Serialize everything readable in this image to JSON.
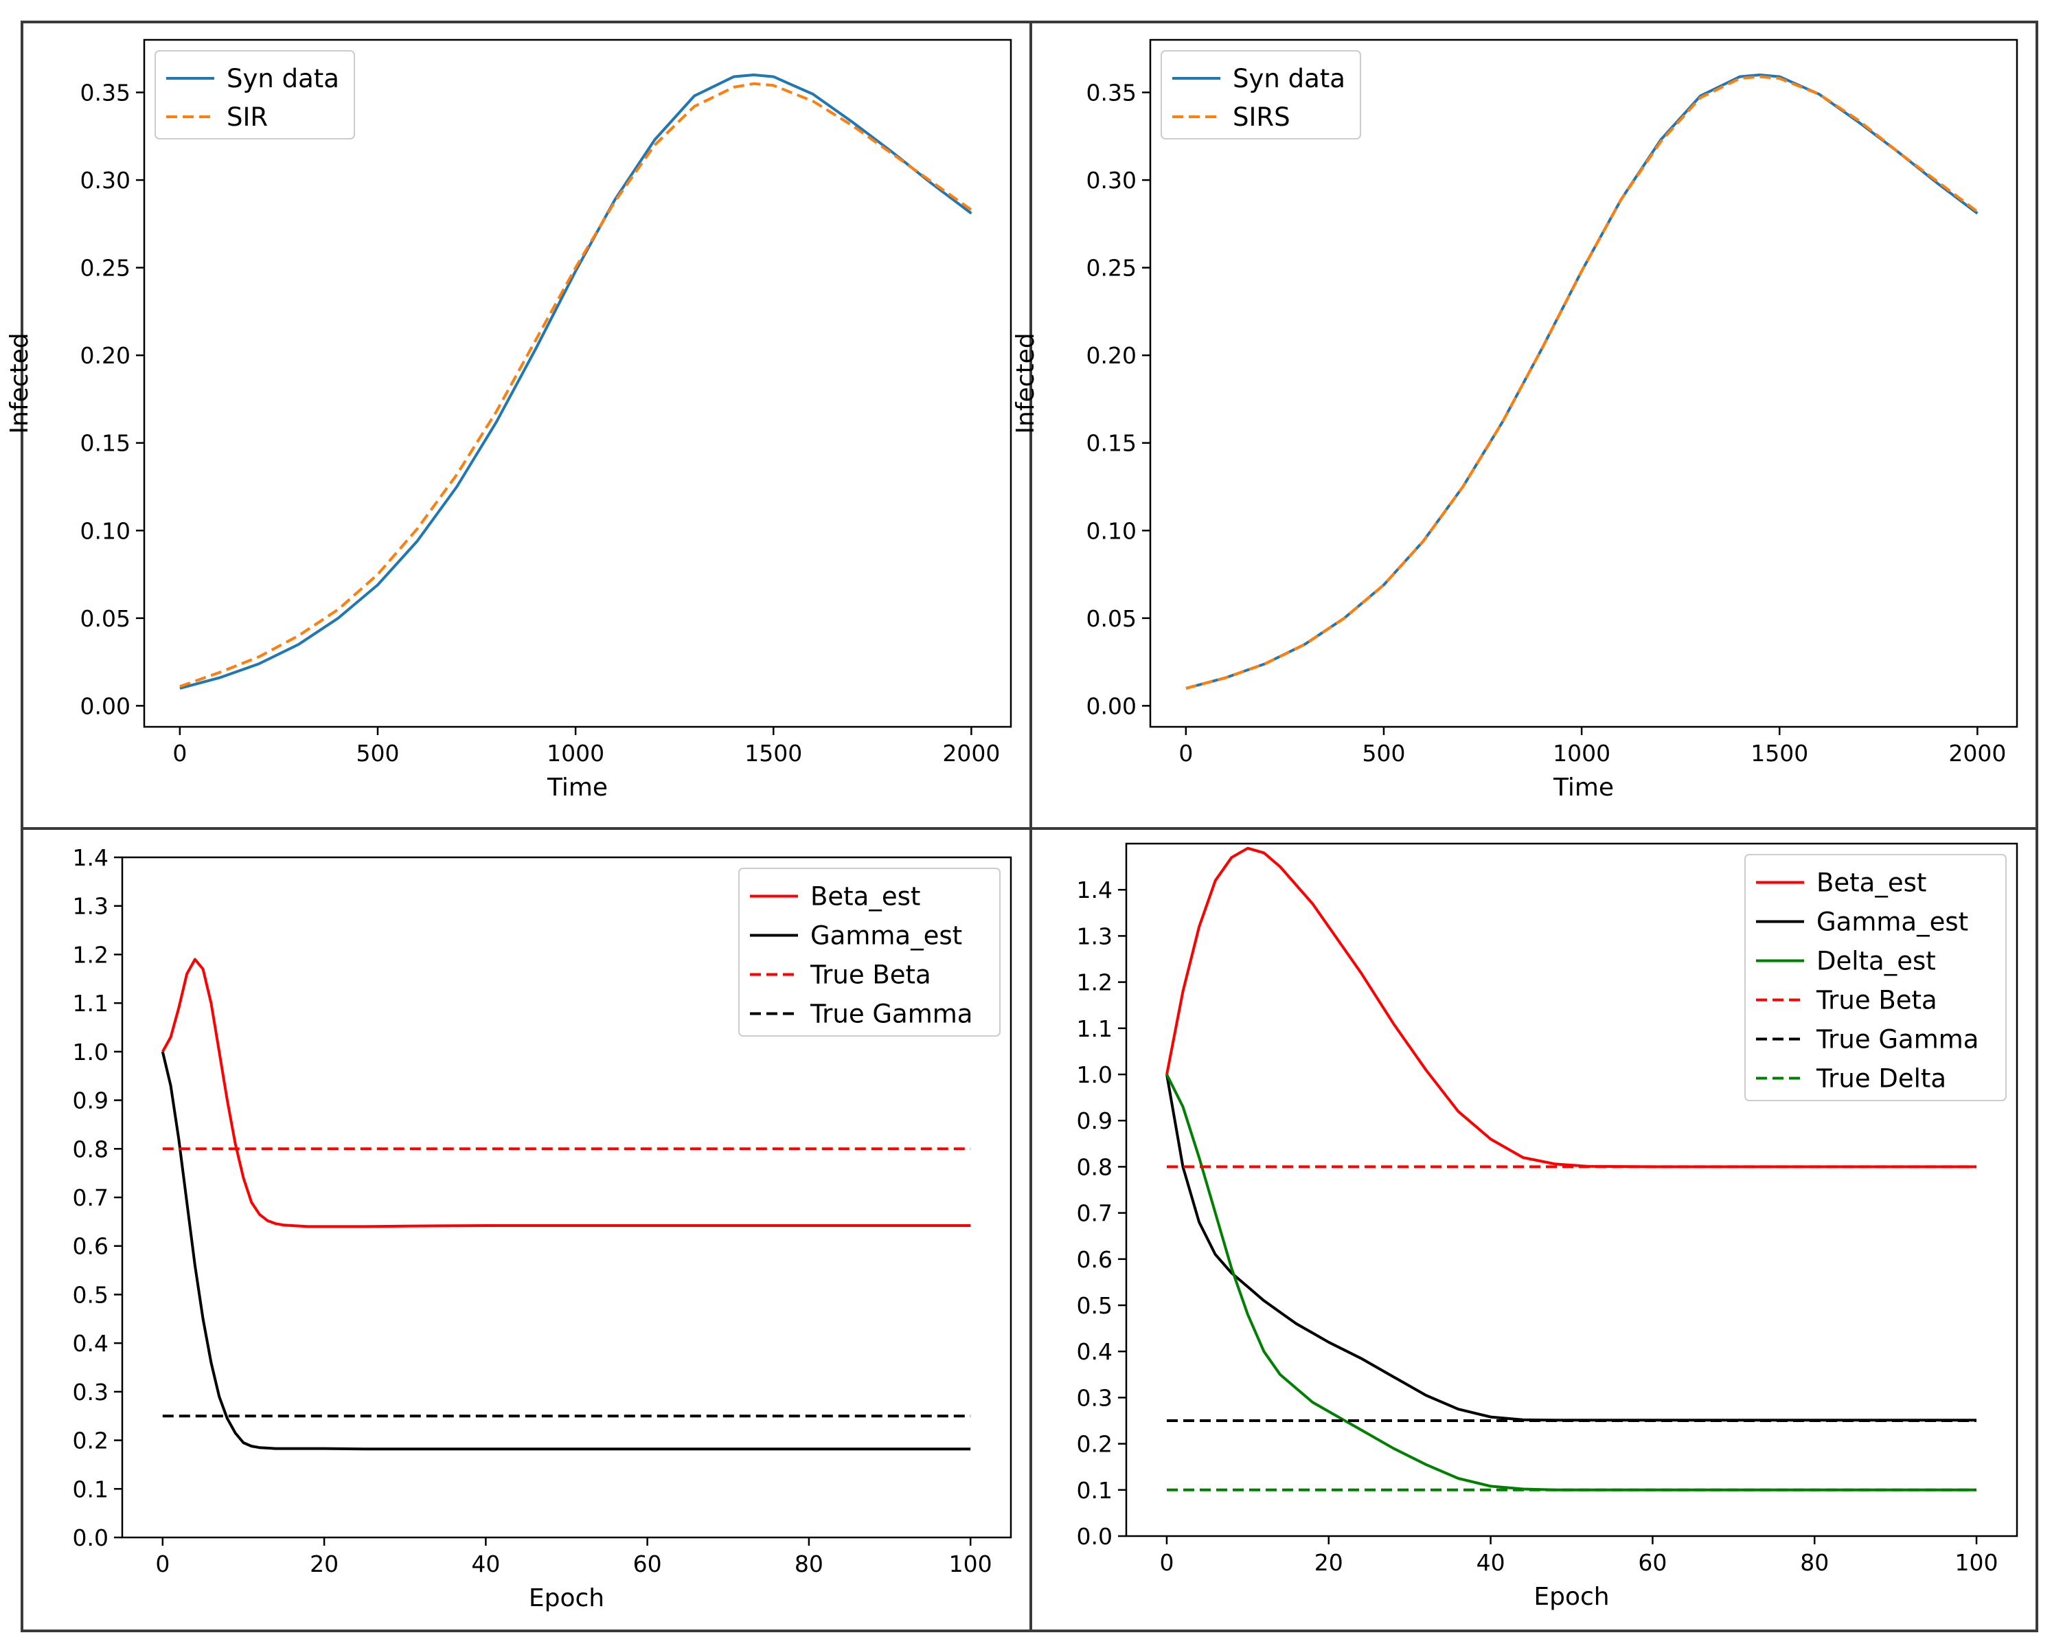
{
  "figure": {
    "panels_count": 4
  },
  "chart_data": [
    {
      "type": "line",
      "xlabel": "Time",
      "ylabel": "Infected",
      "xlim": [
        -90,
        2100
      ],
      "ylim": [
        -0.012,
        0.38
      ],
      "xticks": [
        0,
        500,
        1000,
        1500,
        2000
      ],
      "xtick_labels": [
        "0",
        "500",
        "1000",
        "1500",
        "2000"
      ],
      "yticks": [
        0.0,
        0.05,
        0.1,
        0.15,
        0.2,
        0.25,
        0.3,
        0.35
      ],
      "ytick_labels": [
        "0.00",
        "0.05",
        "0.10",
        "0.15",
        "0.20",
        "0.25",
        "0.30",
        "0.35"
      ],
      "grid": false,
      "legend_position": "upper-left",
      "x": [
        0,
        100,
        200,
        300,
        400,
        500,
        600,
        700,
        800,
        900,
        1000,
        1100,
        1200,
        1300,
        1400,
        1450,
        1500,
        1600,
        1700,
        1800,
        1900,
        2000
      ],
      "series": [
        {
          "name": "Syn data",
          "color": "#1f77b4",
          "style": "solid",
          "values": [
            0.01,
            0.016,
            0.024,
            0.035,
            0.05,
            0.069,
            0.094,
            0.125,
            0.162,
            0.204,
            0.248,
            0.289,
            0.323,
            0.348,
            0.359,
            0.36,
            0.359,
            0.349,
            0.333,
            0.316,
            0.298,
            0.281
          ]
        },
        {
          "name": "SIR",
          "color": "#ff7f0e",
          "style": "dashed",
          "values": [
            0.011,
            0.019,
            0.028,
            0.04,
            0.055,
            0.075,
            0.101,
            0.132,
            0.168,
            0.209,
            0.25,
            0.288,
            0.32,
            0.342,
            0.353,
            0.355,
            0.354,
            0.345,
            0.331,
            0.315,
            0.299,
            0.283
          ]
        }
      ]
    },
    {
      "type": "line",
      "xlabel": "Time",
      "ylabel": "Infected",
      "xlim": [
        -90,
        2100
      ],
      "ylim": [
        -0.012,
        0.38
      ],
      "xticks": [
        0,
        500,
        1000,
        1500,
        2000
      ],
      "xtick_labels": [
        "0",
        "500",
        "1000",
        "1500",
        "2000"
      ],
      "yticks": [
        0.0,
        0.05,
        0.1,
        0.15,
        0.2,
        0.25,
        0.3,
        0.35
      ],
      "ytick_labels": [
        "0.00",
        "0.05",
        "0.10",
        "0.15",
        "0.20",
        "0.25",
        "0.30",
        "0.35"
      ],
      "grid": false,
      "legend_position": "upper-left",
      "x": [
        0,
        100,
        200,
        300,
        400,
        500,
        600,
        700,
        800,
        900,
        1000,
        1100,
        1200,
        1300,
        1400,
        1450,
        1500,
        1600,
        1700,
        1800,
        1900,
        2000
      ],
      "series": [
        {
          "name": "Syn data",
          "color": "#1f77b4",
          "style": "solid",
          "values": [
            0.01,
            0.016,
            0.024,
            0.035,
            0.05,
            0.069,
            0.094,
            0.125,
            0.162,
            0.204,
            0.248,
            0.289,
            0.323,
            0.348,
            0.359,
            0.36,
            0.359,
            0.349,
            0.333,
            0.316,
            0.298,
            0.281
          ]
        },
        {
          "name": "SIRS",
          "color": "#ff7f0e",
          "style": "dashed",
          "values": [
            0.01,
            0.016,
            0.024,
            0.035,
            0.05,
            0.069,
            0.094,
            0.125,
            0.162,
            0.204,
            0.248,
            0.289,
            0.322,
            0.347,
            0.358,
            0.359,
            0.358,
            0.349,
            0.334,
            0.316,
            0.299,
            0.282
          ]
        }
      ]
    },
    {
      "type": "line",
      "xlabel": "Epoch",
      "ylabel": "",
      "xlim": [
        -5,
        105
      ],
      "ylim": [
        0.0,
        1.4
      ],
      "xticks": [
        0,
        20,
        40,
        60,
        80,
        100
      ],
      "xtick_labels": [
        "0",
        "20",
        "40",
        "60",
        "80",
        "100"
      ],
      "yticks": [
        0.0,
        0.1,
        0.2,
        0.3,
        0.4,
        0.5,
        0.6,
        0.7,
        0.8,
        0.9,
        1.0,
        1.1,
        1.2,
        1.3,
        1.4
      ],
      "ytick_labels": [
        "0.0",
        "0.1",
        "0.2",
        "0.3",
        "0.4",
        "0.5",
        "0.6",
        "0.7",
        "0.8",
        "0.9",
        "1.0",
        "1.1",
        "1.2",
        "1.3",
        "1.4"
      ],
      "grid": false,
      "legend_position": "upper-right",
      "series": [
        {
          "name": "Beta_est",
          "color": "#ff0000",
          "style": "solid",
          "x": [
            0,
            1,
            2,
            3,
            4,
            5,
            6,
            7,
            8,
            9,
            10,
            11,
            12,
            13,
            14,
            15,
            16,
            18,
            20,
            25,
            30,
            40,
            50,
            60,
            70,
            80,
            90,
            100
          ],
          "values": [
            1.0,
            1.03,
            1.09,
            1.16,
            1.19,
            1.17,
            1.1,
            1.0,
            0.9,
            0.81,
            0.74,
            0.69,
            0.665,
            0.652,
            0.646,
            0.643,
            0.642,
            0.64,
            0.64,
            0.64,
            0.641,
            0.642,
            0.642,
            0.642,
            0.642,
            0.642,
            0.642,
            0.642
          ]
        },
        {
          "name": "Gamma_est",
          "color": "#000000",
          "style": "solid",
          "x": [
            0,
            1,
            2,
            3,
            4,
            5,
            6,
            7,
            8,
            9,
            10,
            11,
            12,
            13,
            14,
            15,
            16,
            18,
            20,
            25,
            30,
            40,
            50,
            60,
            70,
            80,
            90,
            100
          ],
          "values": [
            1.0,
            0.93,
            0.82,
            0.69,
            0.56,
            0.45,
            0.36,
            0.29,
            0.245,
            0.215,
            0.195,
            0.188,
            0.185,
            0.184,
            0.183,
            0.183,
            0.183,
            0.183,
            0.183,
            0.182,
            0.182,
            0.182,
            0.182,
            0.182,
            0.182,
            0.182,
            0.182,
            0.182
          ],
          "values_note_x_scale": 1
        },
        {
          "name": "True Beta",
          "color": "#ff0000",
          "style": "dashed",
          "x": [
            0,
            100
          ],
          "values": [
            0.8,
            0.8
          ]
        },
        {
          "name": "True Gamma",
          "color": "#000000",
          "style": "dashed",
          "x": [
            0,
            100
          ],
          "values": [
            0.25,
            0.25
          ]
        }
      ]
    },
    {
      "type": "line",
      "xlabel": "Epoch",
      "ylabel": "",
      "xlim": [
        -5,
        105
      ],
      "ylim": [
        0.0,
        1.5
      ],
      "xticks": [
        0,
        20,
        40,
        60,
        80,
        100
      ],
      "xtick_labels": [
        "0",
        "20",
        "40",
        "60",
        "80",
        "100"
      ],
      "yticks": [
        0.0,
        0.1,
        0.2,
        0.3,
        0.4,
        0.5,
        0.6,
        0.7,
        0.8,
        0.9,
        1.0,
        1.1,
        1.2,
        1.3,
        1.4
      ],
      "ytick_labels": [
        "0.0",
        "0.1",
        "0.2",
        "0.3",
        "0.4",
        "0.5",
        "0.6",
        "0.7",
        "0.8",
        "0.9",
        "1.0",
        "1.1",
        "1.2",
        "1.3",
        "1.4"
      ],
      "grid": false,
      "legend_position": "upper-right",
      "series": [
        {
          "name": "Beta_est",
          "color": "#ff0000",
          "style": "solid",
          "x": [
            0,
            2,
            4,
            6,
            8,
            10,
            12,
            14,
            16,
            18,
            20,
            24,
            28,
            32,
            36,
            40,
            44,
            48,
            52,
            60,
            70,
            80,
            90,
            100
          ],
          "values": [
            1.0,
            1.18,
            1.32,
            1.42,
            1.47,
            1.49,
            1.48,
            1.45,
            1.41,
            1.37,
            1.32,
            1.22,
            1.11,
            1.01,
            0.92,
            0.86,
            0.82,
            0.806,
            0.801,
            0.8,
            0.8,
            0.8,
            0.8,
            0.8
          ]
        },
        {
          "name": "Gamma_est",
          "color": "#000000",
          "style": "solid",
          "x": [
            0,
            2,
            4,
            6,
            8,
            10,
            12,
            14,
            16,
            18,
            20,
            24,
            28,
            32,
            36,
            40,
            44,
            48,
            52,
            60,
            70,
            80,
            90,
            100
          ],
          "values": [
            1.0,
            0.8,
            0.68,
            0.61,
            0.57,
            0.54,
            0.51,
            0.485,
            0.46,
            0.44,
            0.42,
            0.385,
            0.345,
            0.305,
            0.275,
            0.258,
            0.252,
            0.251,
            0.251,
            0.251,
            0.251,
            0.251,
            0.251,
            0.251
          ]
        },
        {
          "name": "Delta_est",
          "color": "#008000",
          "style": "solid",
          "x": [
            0,
            2,
            4,
            6,
            8,
            10,
            12,
            14,
            16,
            18,
            20,
            24,
            28,
            32,
            36,
            40,
            44,
            48,
            52,
            60,
            70,
            80,
            90,
            100
          ],
          "values": [
            1.0,
            0.93,
            0.82,
            0.7,
            0.58,
            0.48,
            0.4,
            0.35,
            0.32,
            0.29,
            0.27,
            0.23,
            0.19,
            0.155,
            0.125,
            0.108,
            0.102,
            0.1,
            0.1,
            0.1,
            0.1,
            0.1,
            0.1,
            0.1
          ]
        },
        {
          "name": "True Beta",
          "color": "#ff0000",
          "style": "dashed",
          "x": [
            0,
            100
          ],
          "values": [
            0.8,
            0.8
          ]
        },
        {
          "name": "True Gamma",
          "color": "#000000",
          "style": "dashed",
          "x": [
            0,
            100
          ],
          "values": [
            0.25,
            0.25
          ]
        },
        {
          "name": "True Delta",
          "color": "#008000",
          "style": "dashed",
          "x": [
            0,
            100
          ],
          "values": [
            0.1,
            0.1
          ]
        }
      ]
    }
  ]
}
